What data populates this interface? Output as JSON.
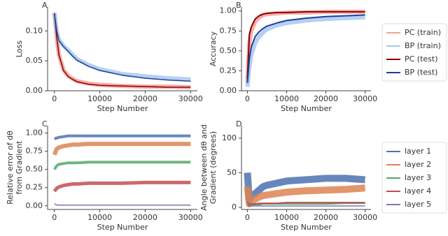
{
  "chart_data": [
    {
      "type": "line",
      "label": "A",
      "y_label": [
        "Loss"
      ],
      "x_label": "Step Number",
      "x": [
        0,
        500,
        1000,
        2000,
        3000,
        4000,
        5000,
        7500,
        10000,
        15000,
        20000,
        25000,
        30000
      ],
      "xlim": [
        -1500,
        31500
      ],
      "xticks": [
        0,
        10000,
        20000,
        30000
      ],
      "ylim": [
        0,
        0.14
      ],
      "yticks": [
        {
          "value": 0,
          "label": "0.00"
        },
        {
          "value": 0.05,
          "label": "0.05"
        },
        {
          "value": 0.1,
          "label": "0.10"
        }
      ],
      "series": [
        {
          "color": "#f4a09a",
          "line_width": 6,
          "values": [
            0.13,
            0.09,
            0.06,
            0.035,
            0.025,
            0.02,
            0.016,
            0.012,
            0.01,
            0.008,
            0.007,
            0.007,
            0.006
          ]
        },
        {
          "color": "#a8c8ee",
          "line_width": 6,
          "values": [
            0.13,
            0.1,
            0.085,
            0.075,
            0.068,
            0.06,
            0.053,
            0.043,
            0.036,
            0.028,
            0.024,
            0.021,
            0.019
          ]
        },
        {
          "color": "#8b0000",
          "line_width": 1.5,
          "values": [
            0.13,
            0.09,
            0.06,
            0.034,
            0.024,
            0.019,
            0.015,
            0.011,
            0.009,
            0.008,
            0.007,
            0.006,
            0.006
          ]
        },
        {
          "color": "#1f3f9a",
          "line_width": 1.5,
          "values": [
            0.13,
            0.1,
            0.084,
            0.074,
            0.066,
            0.058,
            0.051,
            0.041,
            0.034,
            0.026,
            0.021,
            0.018,
            0.016
          ]
        }
      ]
    },
    {
      "type": "line",
      "label": "B",
      "y_label": [
        "Accuracy"
      ],
      "x_label": "Step Number",
      "x": [
        0,
        500,
        1000,
        2000,
        3000,
        4000,
        5000,
        7500,
        10000,
        15000,
        20000,
        25000,
        30000
      ],
      "xlim": [
        -1500,
        31500
      ],
      "xticks": [
        0,
        10000,
        20000,
        30000
      ],
      "ylim": [
        0,
        1.05
      ],
      "yticks": [
        {
          "value": 0,
          "label": "0.00"
        },
        {
          "value": 0.25,
          "label": "0.25"
        },
        {
          "value": 0.5,
          "label": "0.50"
        },
        {
          "value": 0.75,
          "label": "0.75"
        },
        {
          "value": 1,
          "label": "1.00"
        }
      ],
      "series": [
        {
          "name": "PC (train)",
          "color": "#f4a09a",
          "line_width": 6,
          "values": [
            0.1,
            0.6,
            0.75,
            0.87,
            0.92,
            0.95,
            0.96,
            0.97,
            0.98,
            0.98,
            0.99,
            0.99,
            0.99
          ]
        },
        {
          "name": "BP (train)",
          "color": "#a8c8ee",
          "line_width": 6,
          "values": [
            0.05,
            0.3,
            0.45,
            0.6,
            0.68,
            0.73,
            0.77,
            0.82,
            0.85,
            0.88,
            0.9,
            0.91,
            0.92
          ]
        },
        {
          "name": "PC (test)",
          "color": "#8b0000",
          "line_width": 2,
          "values": [
            0.15,
            0.7,
            0.8,
            0.9,
            0.94,
            0.96,
            0.97,
            0.98,
            0.98,
            0.99,
            0.99,
            0.99,
            0.99
          ]
        },
        {
          "name": "BP (test)",
          "color": "#1f3f9a",
          "line_width": 2,
          "values": [
            0.1,
            0.4,
            0.55,
            0.68,
            0.74,
            0.78,
            0.81,
            0.85,
            0.88,
            0.91,
            0.93,
            0.94,
            0.95
          ]
        }
      ]
    },
    {
      "type": "line",
      "label": "C",
      "y_label": [
        "Relative error of dθ",
        "from Gradient"
      ],
      "x_label": "Step Number",
      "x": [
        0,
        500,
        1000,
        2000,
        3000,
        4000,
        5000,
        7500,
        10000,
        15000,
        20000,
        25000,
        30000
      ],
      "xlim": [
        -1500,
        31500
      ],
      "xticks": [
        0,
        10000,
        20000,
        30000
      ],
      "ylim": [
        -0.05,
        1.1
      ],
      "yticks": [
        {
          "value": 0,
          "label": "0.00"
        },
        {
          "value": 0.25,
          "label": "0.25"
        },
        {
          "value": 0.5,
          "label": "0.50"
        },
        {
          "value": 0.75,
          "label": "0.75"
        },
        {
          "value": 1,
          "label": "1.00"
        }
      ],
      "series": [
        {
          "color": "#4c72b0",
          "line_width": 4,
          "values": [
            0.92,
            0.93,
            0.94,
            0.95,
            0.96,
            0.96,
            0.96,
            0.96,
            0.96,
            0.96,
            0.96,
            0.96,
            0.96
          ]
        },
        {
          "color": "#dd8452",
          "line_width": 6,
          "values": [
            0.7,
            0.78,
            0.8,
            0.82,
            0.83,
            0.84,
            0.84,
            0.85,
            0.85,
            0.85,
            0.85,
            0.85,
            0.85
          ]
        },
        {
          "color": "#55a868",
          "line_width": 4,
          "values": [
            0.5,
            0.55,
            0.57,
            0.58,
            0.59,
            0.59,
            0.59,
            0.6,
            0.6,
            0.6,
            0.6,
            0.6,
            0.6
          ]
        },
        {
          "color": "#c44e52",
          "line_width": 5,
          "values": [
            0.2,
            0.24,
            0.26,
            0.28,
            0.29,
            0.3,
            0.3,
            0.31,
            0.31,
            0.31,
            0.32,
            0.32,
            0.32
          ]
        },
        {
          "color": "#8172b3",
          "line_width": 1.5,
          "values": [
            0.03,
            0.01,
            0.01,
            0.01,
            0.01,
            0.01,
            0.01,
            0.01,
            0.01,
            0.01,
            0.01,
            0.01,
            0.01
          ]
        }
      ]
    },
    {
      "type": "line",
      "label": "D",
      "y_label": [
        "Angle between dθ and",
        "Gradient (degrees)"
      ],
      "x_label": "Step Number",
      "x": [
        0,
        500,
        1000,
        2000,
        3000,
        4000,
        5000,
        7500,
        10000,
        15000,
        20000,
        25000,
        30000
      ],
      "xlim": [
        -1500,
        31500
      ],
      "xticks": [
        0,
        10000,
        20000,
        30000
      ],
      "ylim": [
        -3,
        118
      ],
      "yticks": [
        0,
        50,
        100
      ],
      "series": [
        {
          "name": "layer 1",
          "color": "#4c72b0",
          "line_width": 10,
          "values": [
            50,
            10,
            15,
            20,
            25,
            30,
            32,
            35,
            38,
            40,
            42,
            42,
            40
          ]
        },
        {
          "name": "layer 2",
          "color": "#dd8452",
          "line_width": 10,
          "values": [
            30,
            5,
            8,
            12,
            15,
            17,
            18,
            20,
            22,
            24,
            25,
            26,
            28
          ]
        },
        {
          "name": "layer 3",
          "color": "#55a868",
          "line_width": 2,
          "values": [
            5,
            3,
            3,
            4,
            4,
            5,
            5,
            5,
            5,
            5,
            5,
            6,
            6
          ]
        },
        {
          "name": "layer 4",
          "color": "#c44e52",
          "line_width": 2,
          "values": [
            8,
            4,
            5,
            5,
            6,
            6,
            6,
            6,
            7,
            7,
            7,
            7,
            7
          ]
        },
        {
          "name": "layer 5",
          "color": "#8172b3",
          "line_width": 1.5,
          "values": [
            3,
            2,
            2,
            2,
            2,
            2,
            2,
            2,
            2,
            2,
            2,
            2,
            2
          ]
        }
      ]
    }
  ]
}
